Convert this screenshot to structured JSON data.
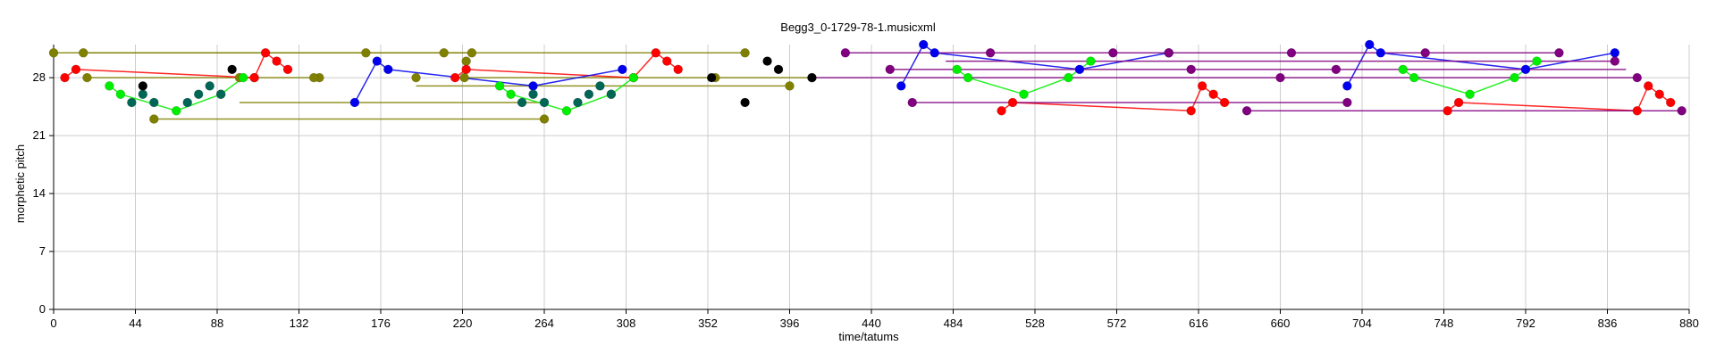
{
  "chart_data": {
    "type": "scatter",
    "title": "Begg3_0-1729-78-1.musicxml",
    "xlabel": "time/tatums",
    "ylabel": "morphetic pitch",
    "xlim": [
      0,
      880
    ],
    "ylim": [
      0,
      32
    ],
    "xticks": [
      "0",
      "44",
      "88",
      "132",
      "176",
      "220",
      "264",
      "308",
      "352",
      "396",
      "440",
      "484",
      "528",
      "572",
      "616",
      "660",
      "704",
      "748",
      "792",
      "836",
      "880"
    ],
    "yticks": [
      "0",
      "7",
      "14",
      "21",
      "28"
    ],
    "grid": true,
    "colors": {
      "olive": "#808000",
      "red": "#ff0000",
      "green": "#00ee00",
      "blue": "#0000ee",
      "teal": "#006655",
      "black": "#000000",
      "purple": "#800080",
      "dark_purple": "#4a0040",
      "grid": "#cccccc"
    },
    "series": [
      {
        "color": "olive",
        "points": [
          [
            0,
            31
          ],
          [
            16,
            31
          ],
          [
            210,
            31
          ],
          [
            225,
            31
          ],
          [
            18,
            28
          ],
          [
            143,
            28
          ],
          [
            168,
            31
          ],
          [
            195,
            28
          ],
          [
            221,
            28
          ],
          [
            356,
            28
          ],
          [
            372,
            31
          ],
          [
            396,
            27
          ],
          [
            408,
            28
          ],
          [
            54,
            23
          ],
          [
            264,
            23
          ],
          [
            100,
            28
          ],
          [
            222,
            30
          ],
          [
            108,
            28
          ],
          [
            140,
            28
          ]
        ],
        "lines": [
          [
            [
              0,
              31
            ],
            [
              210,
              31
            ]
          ],
          [
            [
              16,
              31
            ],
            [
              225,
              31
            ]
          ],
          [
            [
              210,
              31
            ],
            [
              372,
              31
            ]
          ],
          [
            [
              18,
              28
            ],
            [
              143,
              28
            ]
          ],
          [
            [
              408,
              28
            ],
            [
              356,
              28
            ]
          ],
          [
            [
              195,
              27
            ],
            [
              396,
              27
            ]
          ],
          [
            [
              100,
              25
            ],
            [
              264,
              25
            ]
          ],
          [
            [
              54,
              23
            ],
            [
              264,
              23
            ]
          ],
          [
            [
              221,
              28
            ],
            [
              356,
              28
            ]
          ]
        ]
      },
      {
        "color": "red",
        "points": [
          [
            6,
            28
          ],
          [
            12,
            29
          ],
          [
            108,
            28
          ],
          [
            114,
            31
          ],
          [
            120,
            30
          ],
          [
            126,
            29
          ],
          [
            216,
            28
          ],
          [
            222,
            29
          ],
          [
            312,
            28
          ],
          [
            324,
            31
          ],
          [
            330,
            30
          ],
          [
            336,
            29
          ],
          [
            510,
            24
          ],
          [
            516,
            25
          ],
          [
            612,
            24
          ],
          [
            618,
            27
          ],
          [
            624,
            26
          ],
          [
            630,
            25
          ],
          [
            750,
            24
          ],
          [
            756,
            25
          ],
          [
            852,
            24
          ],
          [
            858,
            27
          ],
          [
            864,
            26
          ],
          [
            870,
            25
          ]
        ],
        "lines": [
          [
            [
              6,
              28
            ],
            [
              12,
              29
            ],
            [
              108,
              28
            ],
            [
              114,
              31
            ],
            [
              120,
              30
            ],
            [
              126,
              29
            ]
          ],
          [
            [
              216,
              28
            ],
            [
              222,
              29
            ],
            [
              312,
              28
            ],
            [
              324,
              31
            ],
            [
              330,
              30
            ],
            [
              336,
              29
            ]
          ],
          [
            [
              510,
              24
            ],
            [
              516,
              25
            ],
            [
              612,
              24
            ],
            [
              618,
              27
            ],
            [
              624,
              26
            ],
            [
              630,
              25
            ]
          ],
          [
            [
              750,
              24
            ],
            [
              756,
              25
            ],
            [
              852,
              24
            ],
            [
              858,
              27
            ],
            [
              864,
              26
            ],
            [
              870,
              25
            ]
          ]
        ]
      },
      {
        "color": "green",
        "points": [
          [
            30,
            27
          ],
          [
            36,
            26
          ],
          [
            66,
            24
          ],
          [
            90,
            26
          ],
          [
            102,
            28
          ],
          [
            240,
            27
          ],
          [
            246,
            26
          ],
          [
            276,
            24
          ],
          [
            300,
            26
          ],
          [
            312,
            28
          ],
          [
            486,
            29
          ],
          [
            492,
            28
          ],
          [
            522,
            26
          ],
          [
            546,
            28
          ],
          [
            558,
            30
          ],
          [
            726,
            29
          ],
          [
            732,
            28
          ],
          [
            762,
            26
          ],
          [
            786,
            28
          ],
          [
            798,
            30
          ]
        ],
        "lines": [
          [
            [
              30,
              27
            ],
            [
              36,
              26
            ],
            [
              66,
              24
            ],
            [
              90,
              26
            ],
            [
              102,
              28
            ]
          ],
          [
            [
              240,
              27
            ],
            [
              246,
              26
            ],
            [
              276,
              24
            ],
            [
              300,
              26
            ],
            [
              312,
              28
            ]
          ],
          [
            [
              486,
              29
            ],
            [
              492,
              28
            ],
            [
              522,
              26
            ],
            [
              546,
              28
            ],
            [
              558,
              30
            ]
          ],
          [
            [
              726,
              29
            ],
            [
              732,
              28
            ],
            [
              762,
              26
            ],
            [
              786,
              28
            ],
            [
              798,
              30
            ]
          ]
        ]
      },
      {
        "color": "blue",
        "points": [
          [
            162,
            25
          ],
          [
            174,
            30
          ],
          [
            180,
            29
          ],
          [
            258,
            27
          ],
          [
            306,
            29
          ],
          [
            456,
            27
          ],
          [
            468,
            32
          ],
          [
            474,
            31
          ],
          [
            552,
            29
          ],
          [
            600,
            31
          ],
          [
            696,
            27
          ],
          [
            708,
            32
          ],
          [
            714,
            31
          ],
          [
            792,
            29
          ],
          [
            840,
            31
          ]
        ],
        "lines": [
          [
            [
              162,
              25
            ],
            [
              174,
              30
            ],
            [
              180,
              29
            ],
            [
              258,
              27
            ],
            [
              306,
              29
            ]
          ],
          [
            [
              456,
              27
            ],
            [
              468,
              32
            ],
            [
              474,
              31
            ],
            [
              552,
              29
            ],
            [
              600,
              31
            ]
          ],
          [
            [
              696,
              27
            ],
            [
              708,
              32
            ],
            [
              714,
              31
            ],
            [
              792,
              29
            ],
            [
              840,
              31
            ]
          ]
        ]
      },
      {
        "color": "teal",
        "points": [
          [
            42,
            25
          ],
          [
            48,
            26
          ],
          [
            54,
            25
          ],
          [
            72,
            25
          ],
          [
            78,
            26
          ],
          [
            84,
            27
          ],
          [
            90,
            26
          ],
          [
            252,
            25
          ],
          [
            258,
            26
          ],
          [
            264,
            25
          ],
          [
            282,
            25
          ],
          [
            288,
            26
          ],
          [
            294,
            27
          ],
          [
            300,
            26
          ]
        ],
        "lines": []
      },
      {
        "color": "black",
        "points": [
          [
            96,
            29
          ],
          [
            48,
            27
          ],
          [
            372,
            25
          ],
          [
            384,
            30
          ],
          [
            390,
            29
          ],
          [
            354,
            28
          ],
          [
            408,
            28
          ]
        ],
        "lines": []
      },
      {
        "color": "purple",
        "points": [
          [
            426,
            31
          ],
          [
            450,
            29
          ],
          [
            462,
            25
          ],
          [
            504,
            31
          ],
          [
            570,
            31
          ],
          [
            600,
            31
          ],
          [
            612,
            29
          ],
          [
            660,
            28
          ],
          [
            666,
            31
          ],
          [
            690,
            29
          ],
          [
            696,
            25
          ],
          [
            738,
            31
          ],
          [
            810,
            31
          ],
          [
            840,
            30
          ],
          [
            852,
            28
          ],
          [
            876,
            24
          ],
          [
            642,
            24
          ]
        ],
        "lines": [
          [
            [
              426,
              31
            ],
            [
              810,
              31
            ]
          ],
          [
            [
              450,
              29
            ],
            [
              846,
              29
            ]
          ],
          [
            [
              462,
              25
            ],
            [
              696,
              25
            ]
          ],
          [
            [
              408,
              28
            ],
            [
              852,
              28
            ]
          ],
          [
            [
              480,
              30
            ],
            [
              840,
              30
            ]
          ],
          [
            [
              642,
              24
            ],
            [
              876,
              24
            ]
          ]
        ]
      }
    ]
  }
}
